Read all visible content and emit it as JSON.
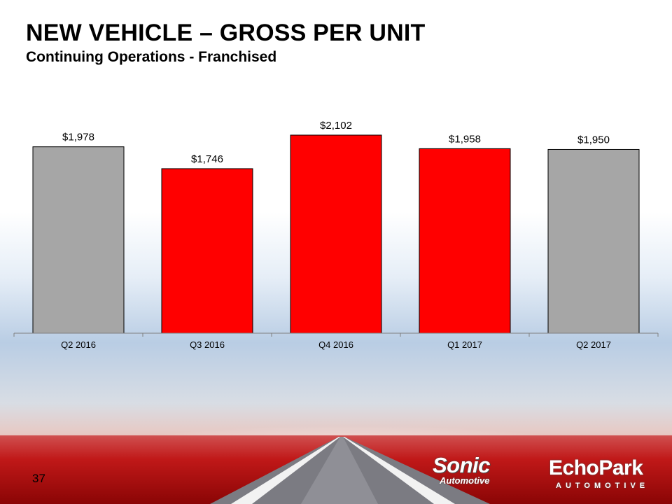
{
  "slide": {
    "title": "NEW VEHICLE – GROSS PER UNIT",
    "subtitle": "Continuing Operations - Franchised",
    "page_number": "37"
  },
  "logos": {
    "sonic_main": "Sonic",
    "sonic_sub": "Automotive",
    "echopark_main": "EchoPark",
    "echopark_sub": "AUTOMOTIVE"
  },
  "colors": {
    "gray_bar": "#a6a6a6",
    "red_bar": "#ff0000",
    "bar_outline": "#000000"
  },
  "chart_data": {
    "type": "bar",
    "categories": [
      "Q2 2016",
      "Q3 2016",
      "Q4 2016",
      "Q1 2017",
      "Q2 2017"
    ],
    "values": [
      1978,
      1746,
      2102,
      1958,
      1950
    ],
    "value_labels": [
      "$1,978",
      "$1,746",
      "$2,102",
      "$1,958",
      "$1,950"
    ],
    "bar_colors": [
      "#a6a6a6",
      "#ff0000",
      "#ff0000",
      "#ff0000",
      "#a6a6a6"
    ],
    "title": "",
    "xlabel": "",
    "ylabel": "",
    "ylim": [
      0,
      2102
    ],
    "grid": false,
    "legend": "none"
  }
}
